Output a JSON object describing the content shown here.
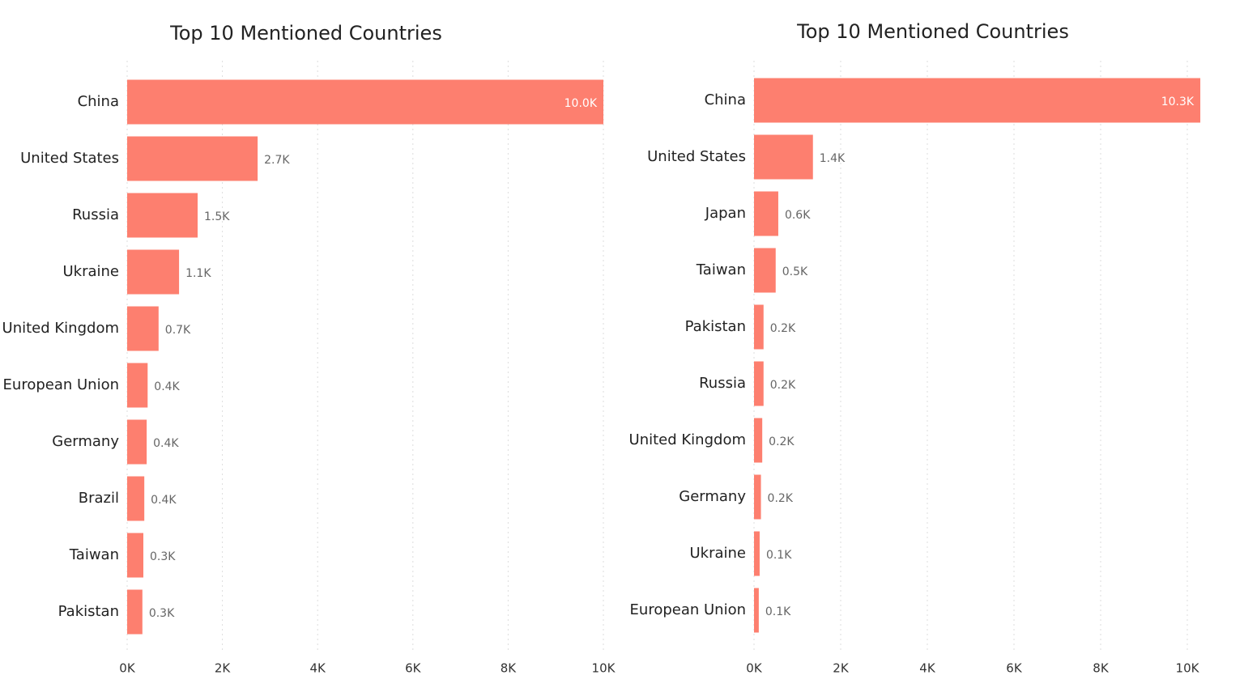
{
  "chart_data": [
    {
      "type": "bar",
      "title": "Top 10 Mentioned Countries",
      "color": "#fd7f6f",
      "categories": [
        "China",
        "United States",
        "Russia",
        "Ukraine",
        "United Kingdom",
        "European Union",
        "Germany",
        "Brazil",
        "Taiwan",
        "Pakistan"
      ],
      "values": [
        10000,
        2740,
        1480,
        1090,
        660,
        430,
        410,
        360,
        340,
        320
      ],
      "value_labels": [
        "10.0K",
        "2.7K",
        "1.5K",
        "1.1K",
        "0.7K",
        "0.4K",
        "0.4K",
        "0.4K",
        "0.3K",
        "0.3K"
      ],
      "xlim": [
        0,
        10000
      ],
      "xticks": [
        {
          "value": 0,
          "label": "0K"
        },
        {
          "value": 2000,
          "label": "2K"
        },
        {
          "value": 4000,
          "label": "4K"
        },
        {
          "value": 6000,
          "label": "6K"
        },
        {
          "value": 8000,
          "label": "8K"
        },
        {
          "value": 10000,
          "label": "10K"
        }
      ],
      "grid": true
    },
    {
      "type": "bar",
      "title": "Top 10 Mentioned Countries",
      "color": "#fd7f6f",
      "categories": [
        "China",
        "United States",
        "Japan",
        "Taiwan",
        "Pakistan",
        "Russia",
        "United Kingdom",
        "Germany",
        "Ukraine",
        "European Union"
      ],
      "values": [
        10300,
        1360,
        560,
        500,
        220,
        220,
        190,
        160,
        130,
        110
      ],
      "value_labels": [
        "10.3K",
        "1.4K",
        "0.6K",
        "0.5K",
        "0.2K",
        "0.2K",
        "0.2K",
        "0.2K",
        "0.1K",
        "0.1K"
      ],
      "xlim": [
        0,
        10300
      ],
      "xticks": [
        {
          "value": 0,
          "label": "0K"
        },
        {
          "value": 2000,
          "label": "2K"
        },
        {
          "value": 4000,
          "label": "4K"
        },
        {
          "value": 6000,
          "label": "6K"
        },
        {
          "value": 8000,
          "label": "8K"
        },
        {
          "value": 10000,
          "label": "10K"
        }
      ],
      "grid": true
    }
  ]
}
